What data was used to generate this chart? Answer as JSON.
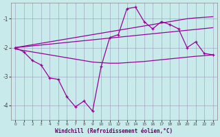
{
  "x": [
    0,
    1,
    2,
    3,
    4,
    5,
    6,
    7,
    8,
    9,
    10,
    11,
    12,
    13,
    14,
    15,
    16,
    17,
    18,
    19,
    20,
    21,
    22,
    23
  ],
  "y_main": [
    -2.0,
    -2.15,
    -2.45,
    -2.6,
    -3.05,
    -3.1,
    -3.7,
    -4.05,
    -3.85,
    -4.2,
    -2.65,
    -1.65,
    -1.55,
    -0.65,
    -0.6,
    -1.1,
    -1.35,
    -1.1,
    -1.2,
    -1.35,
    -2.0,
    -1.8,
    -2.2,
    -2.25
  ],
  "y_upper": [
    -2.0,
    -1.95,
    -1.9,
    -1.85,
    -1.8,
    -1.75,
    -1.7,
    -1.65,
    -1.6,
    -1.55,
    -1.5,
    -1.45,
    -1.4,
    -1.35,
    -1.3,
    -1.25,
    -1.2,
    -1.15,
    -1.1,
    -1.05,
    -1.0,
    -0.97,
    -0.95,
    -0.93
  ],
  "y_mid": [
    -2.0,
    -1.97,
    -1.94,
    -1.91,
    -1.88,
    -1.85,
    -1.82,
    -1.79,
    -1.76,
    -1.73,
    -1.7,
    -1.67,
    -1.64,
    -1.61,
    -1.58,
    -1.55,
    -1.52,
    -1.49,
    -1.46,
    -1.43,
    -1.4,
    -1.37,
    -1.34,
    -1.31
  ],
  "y_lower": [
    -2.05,
    -2.1,
    -2.15,
    -2.2,
    -2.25,
    -2.3,
    -2.35,
    -2.4,
    -2.45,
    -2.5,
    -2.52,
    -2.54,
    -2.54,
    -2.52,
    -2.5,
    -2.48,
    -2.45,
    -2.42,
    -2.39,
    -2.36,
    -2.33,
    -2.3,
    -2.28,
    -2.25
  ],
  "bg_color": "#c8eaea",
  "line_color": "#990099",
  "grid_color": "#9999bb",
  "xlabel": "Windchill (Refroidissement éolien,°C)",
  "ylim": [
    -4.5,
    -0.45
  ],
  "xlim": [
    -0.5,
    23.5
  ],
  "yticks": [
    -4,
    -3,
    -2,
    -1
  ],
  "label_color": "#660066"
}
